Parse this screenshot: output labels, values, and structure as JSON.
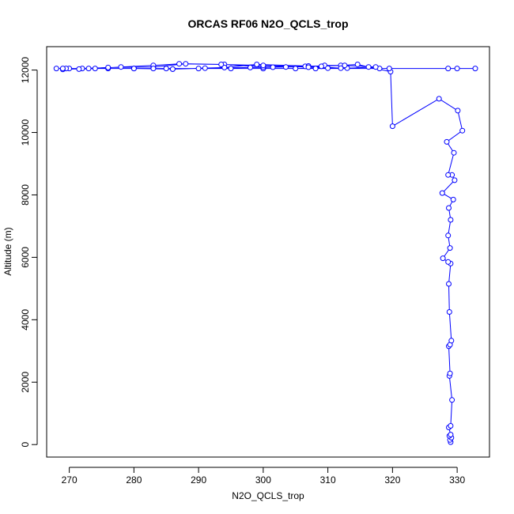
{
  "chart_data": {
    "type": "line",
    "title": "ORCAS RF06 N2O_QCLS_trop",
    "xlabel": "N2O_QCLS_trop",
    "ylabel": "Altitude (m)",
    "xlim": [
      266.5,
      335
    ],
    "ylim": [
      -400,
      12750
    ],
    "xticks": [
      "270",
      "280",
      "290",
      "300",
      "310",
      "320",
      "330"
    ],
    "yticks": [
      "0",
      "2000",
      "4000",
      "6000",
      "8000",
      "10000",
      "12000"
    ],
    "grid": false,
    "line_color": "#0000ff",
    "marker": "open-circle",
    "series": [
      {
        "x": [
          329.0,
          328.9,
          329.1,
          328.8,
          329.0,
          328.7,
          329.0,
          329.2,
          328.8,
          328.9,
          328.7,
          328.9,
          329.1,
          328.8,
          328.7,
          329.0,
          328.6,
          327.8,
          328.9,
          328.6,
          329.0,
          328.7,
          329.4,
          327.7,
          329.6,
          329.2,
          328.6,
          329.5,
          328.4,
          330.8,
          330.1,
          327.2,
          320.0,
          319.7,
          316.3,
          314.6,
          312.0,
          309.5,
          308.1,
          319.5,
          328.6,
          330.0,
          332.8,
          318.0,
          300.0,
          270.0,
          268.0,
          269.5,
          272.0,
          276.0,
          280.0,
          285.0,
          290.0,
          295.0,
          300.0,
          305.0,
          310.0,
          313.0,
          317.4,
          312.6,
          306.5,
          300.0,
          294.0,
          288.0,
          283.0,
          276.0,
          269.0,
          273.0,
          280.0,
          286.0,
          294.0,
          299.0,
          307.0,
          312.0,
          307.0,
          300.0,
          293.5,
          287.0,
          283.0,
          278.0,
          274.0,
          271.5,
          269.0,
          283.0,
          286.0,
          291.0,
          298.0,
          301.5,
          303.5,
          309.0
        ],
        "y": [
          80,
          150,
          220,
          280,
          320,
          550,
          600,
          1430,
          2200,
          2280,
          3150,
          3200,
          3330,
          4250,
          5150,
          5800,
          5850,
          5970,
          6300,
          6700,
          7200,
          7580,
          7850,
          8060,
          8470,
          8640,
          8640,
          9350,
          9700,
          10060,
          10700,
          11080,
          10200,
          11950,
          12100,
          12180,
          12150,
          12150,
          12050,
          12050,
          12050,
          12050,
          12050,
          12050,
          12050,
          12050,
          12050,
          12050,
          12050,
          12050,
          12050,
          12050,
          12050,
          12050,
          12050,
          12050,
          12060,
          12060,
          12100,
          12150,
          12120,
          12100,
          12180,
          12200,
          12100,
          12080,
          12020,
          12050,
          12050,
          12030,
          12080,
          12180,
          12130,
          12060,
          12090,
          12150,
          12180,
          12200,
          12150,
          12100,
          12050,
          12030,
          12050,
          12050,
          12030,
          12060,
          12080,
          12090,
          12100,
          12120
        ]
      }
    ]
  }
}
